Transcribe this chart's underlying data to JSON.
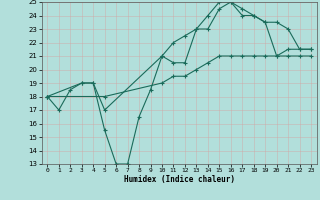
{
  "xlabel": "Humidex (Indice chaleur)",
  "background_color": "#b2dfdb",
  "grid_color": "#e8f5f3",
  "line_color": "#1a6b5a",
  "xlim": [
    -0.5,
    23.5
  ],
  "ylim": [
    13,
    25
  ],
  "xticks": [
    0,
    1,
    2,
    3,
    4,
    5,
    6,
    7,
    8,
    9,
    10,
    11,
    12,
    13,
    14,
    15,
    16,
    17,
    18,
    19,
    20,
    21,
    22,
    23
  ],
  "yticks": [
    13,
    14,
    15,
    16,
    17,
    18,
    19,
    20,
    21,
    22,
    23,
    24,
    25
  ],
  "line1_x": [
    0,
    1,
    2,
    3,
    4,
    5,
    6,
    7,
    8,
    9,
    10,
    11,
    12,
    13,
    14,
    15,
    16,
    17,
    18,
    19,
    20,
    21,
    22,
    23
  ],
  "line1_y": [
    18,
    17,
    18.5,
    19,
    19,
    15.5,
    13,
    13,
    16.5,
    18.5,
    21,
    20.5,
    20.5,
    23,
    24,
    25,
    25,
    24,
    24,
    23.5,
    21,
    21.5,
    21.5,
    21.5
  ],
  "line2_x": [
    0,
    3,
    4,
    5,
    10,
    11,
    12,
    13,
    14,
    15,
    16,
    17,
    18,
    19,
    20,
    21,
    22,
    23
  ],
  "line2_y": [
    18,
    19,
    19,
    17,
    21,
    22,
    22.5,
    23,
    23,
    24.5,
    25,
    24.5,
    24,
    23.5,
    23.5,
    23,
    21.5,
    21.5
  ],
  "line3_x": [
    0,
    5,
    10,
    11,
    12,
    13,
    14,
    15,
    16,
    17,
    18,
    19,
    20,
    21,
    22,
    23
  ],
  "line3_y": [
    18,
    18,
    19,
    19.5,
    19.5,
    20,
    20.5,
    21,
    21,
    21,
    21,
    21,
    21,
    21,
    21,
    21
  ]
}
